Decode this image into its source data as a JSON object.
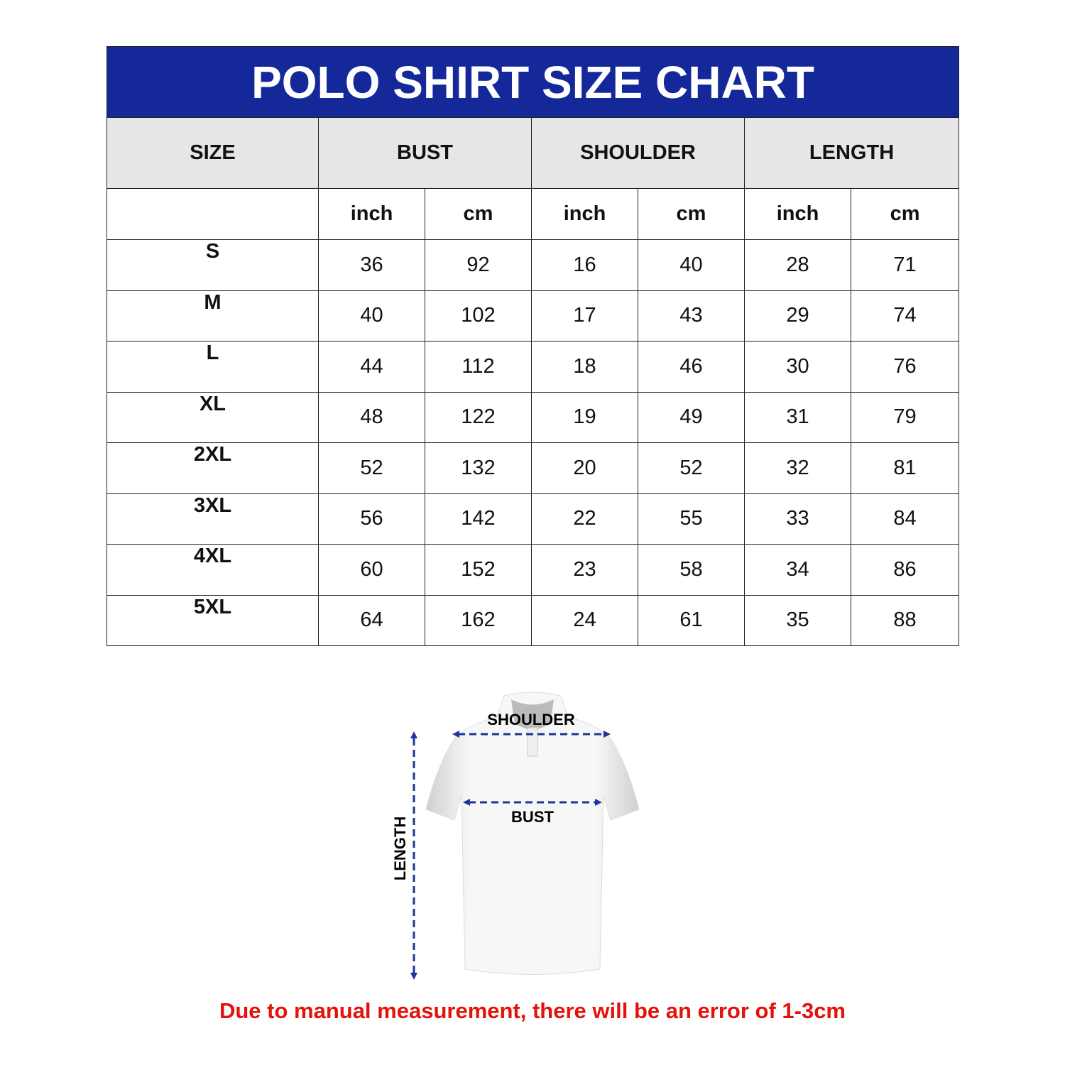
{
  "title": "POLO SHIRT SIZE CHART",
  "headers": [
    "SIZE",
    "BUST",
    "SHOULDER",
    "LENGTH"
  ],
  "units": [
    "inch",
    "cm",
    "inch",
    "cm",
    "inch",
    "cm"
  ],
  "rows": [
    [
      "S",
      "36",
      "92",
      "16",
      "40",
      "28",
      "71"
    ],
    [
      "M",
      "40",
      "102",
      "17",
      "43",
      "29",
      "74"
    ],
    [
      "L",
      "44",
      "112",
      "18",
      "46",
      "30",
      "76"
    ],
    [
      "XL",
      "48",
      "122",
      "19",
      "49",
      "31",
      "79"
    ],
    [
      "2XL",
      "52",
      "132",
      "20",
      "52",
      "32",
      "81"
    ],
    [
      "3XL",
      "56",
      "142",
      "22",
      "55",
      "33",
      "84"
    ],
    [
      "4XL",
      "60",
      "152",
      "23",
      "58",
      "34",
      "86"
    ],
    [
      "5XL",
      "64",
      "162",
      "24",
      "61",
      "35",
      "88"
    ]
  ],
  "diagram": {
    "shoulder": "SHOULDER",
    "bust": "BUST",
    "length": "LENGTH"
  },
  "note": "Due to manual measurement, there will be an error of 1-3cm",
  "colors": {
    "title_bg": "#14289a",
    "header_bg": "#e6e6e6",
    "note": "#e3120b",
    "arrow": "#1f3599"
  }
}
